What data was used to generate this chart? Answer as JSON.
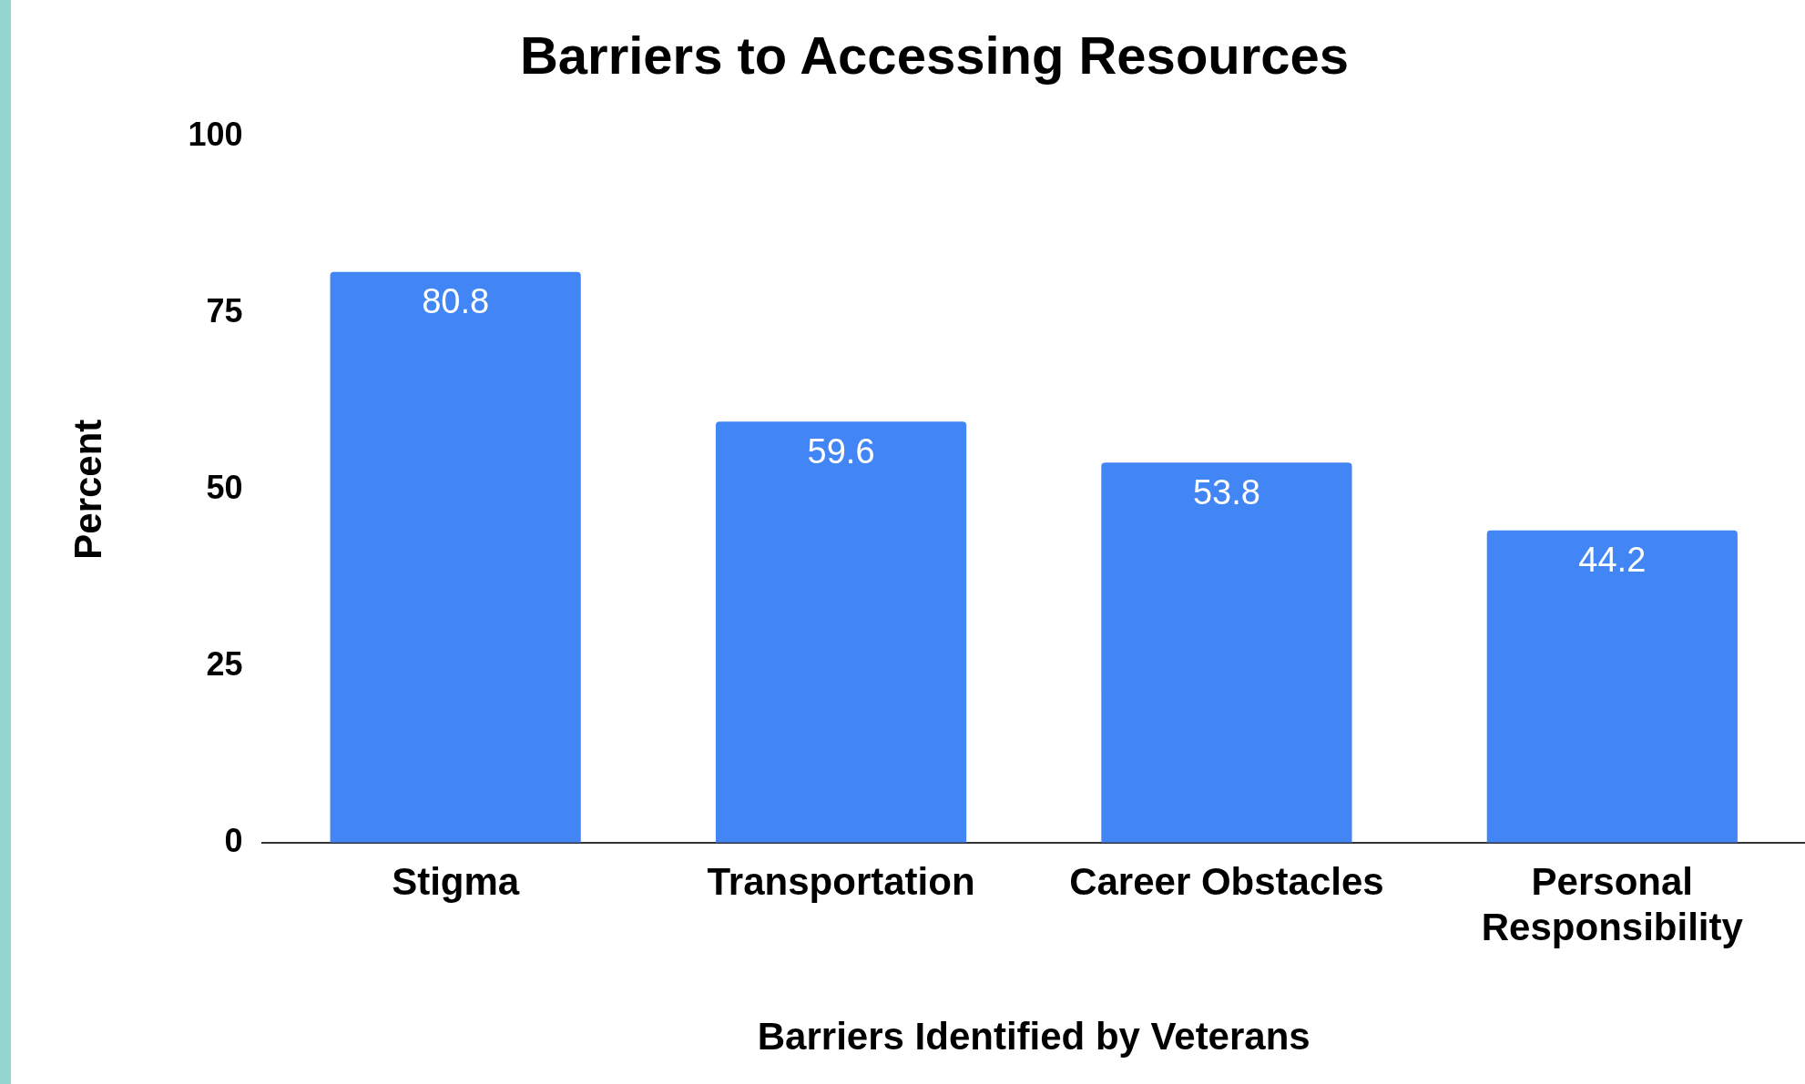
{
  "chart_data": {
    "type": "bar",
    "title": "Barriers to Accessing Resources",
    "xlabel": "Barriers Identified by Veterans",
    "ylabel": "Percent",
    "categories": [
      "Stigma",
      "Transportation",
      "Career Obstacles",
      "Personal Responsibility"
    ],
    "values": [
      80.8,
      59.6,
      53.8,
      44.2
    ],
    "color": "#4285f4",
    "ylim": [
      0,
      100
    ],
    "yticks": [
      0,
      25,
      50,
      75,
      100
    ],
    "grid": false,
    "legend": false,
    "data_labels": true
  }
}
